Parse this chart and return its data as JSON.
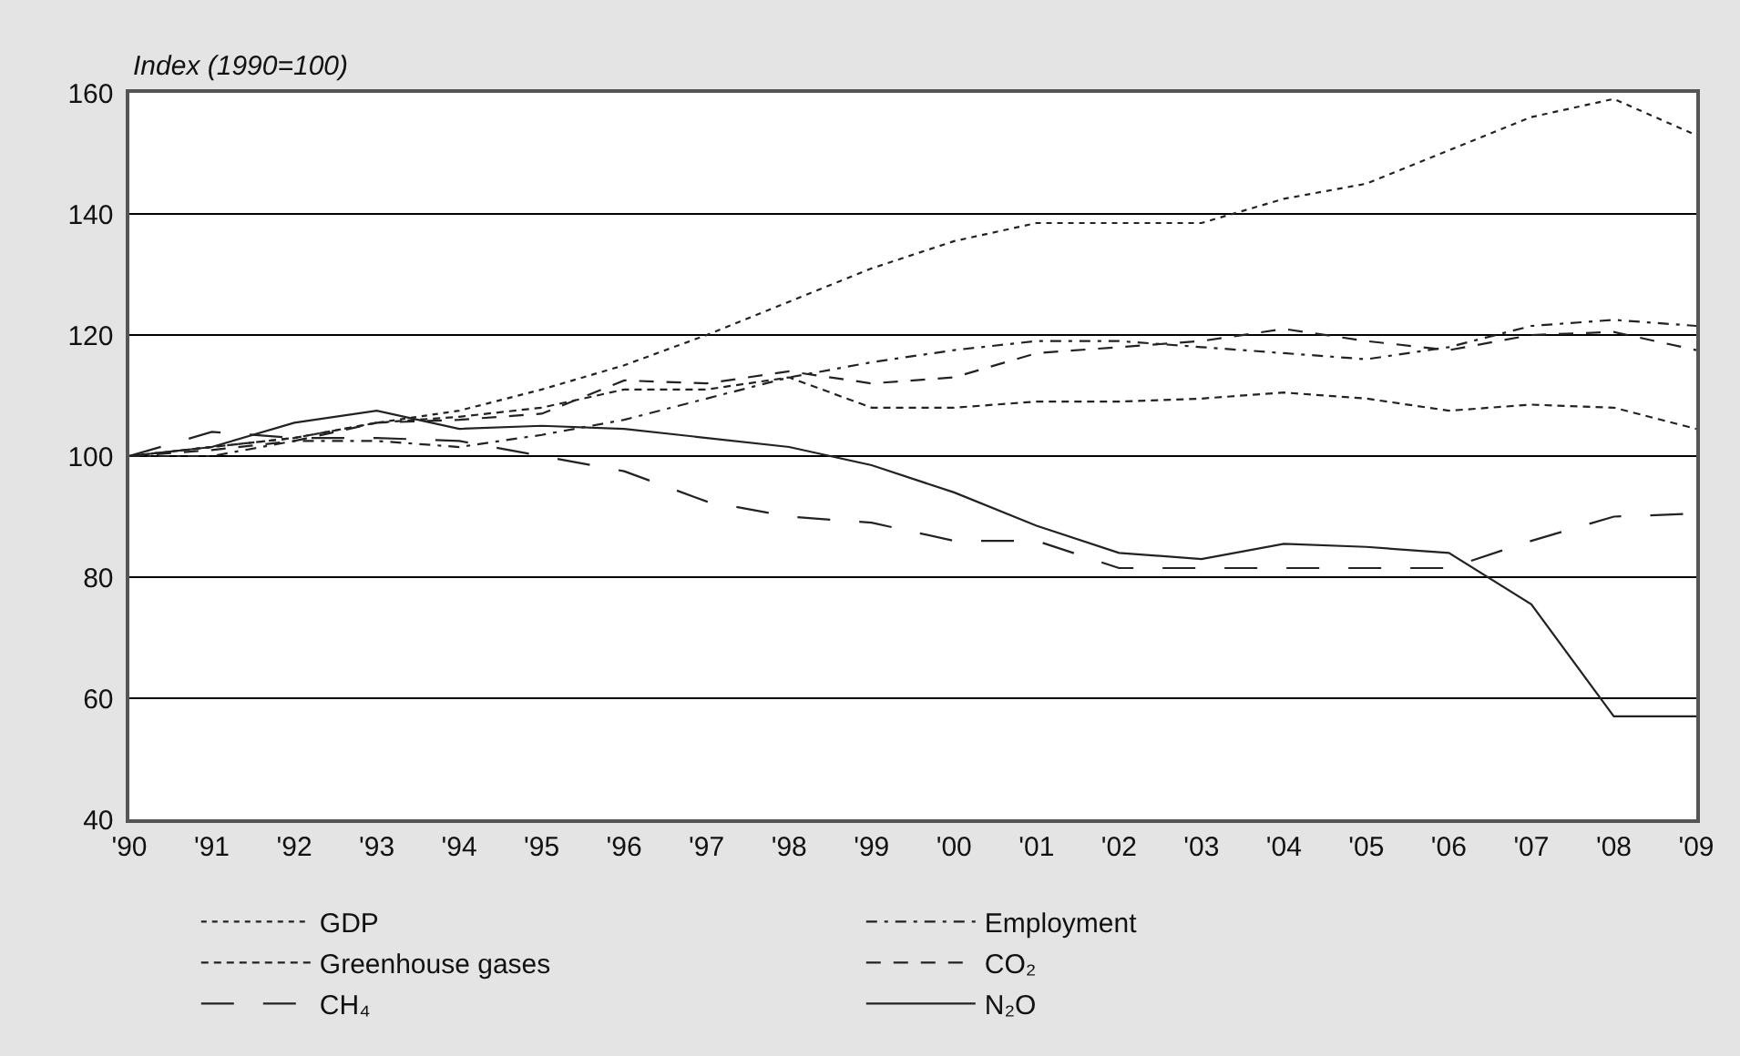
{
  "chart_data": {
    "type": "line",
    "ylabel": "Index (1990=100)",
    "x": [
      1990,
      1991,
      1992,
      1993,
      1994,
      1995,
      1996,
      1997,
      1998,
      1999,
      2000,
      2001,
      2002,
      2003,
      2004,
      2005,
      2006,
      2007,
      2008,
      2009
    ],
    "xlim": [
      1990,
      2009
    ],
    "xticks": [
      {
        "value": 1990,
        "label": "'90"
      },
      {
        "value": 1991,
        "label": "'91"
      },
      {
        "value": 1992,
        "label": "'92"
      },
      {
        "value": 1993,
        "label": "'93"
      },
      {
        "value": 1994,
        "label": "'94"
      },
      {
        "value": 1995,
        "label": "'95"
      },
      {
        "value": 1996,
        "label": "'96"
      },
      {
        "value": 1997,
        "label": "'97"
      },
      {
        "value": 1998,
        "label": "'98"
      },
      {
        "value": 1999,
        "label": "'99"
      },
      {
        "value": 2000,
        "label": "'00"
      },
      {
        "value": 2001,
        "label": "'01"
      },
      {
        "value": 2002,
        "label": "'02"
      },
      {
        "value": 2003,
        "label": "'03"
      },
      {
        "value": 2004,
        "label": "'04"
      },
      {
        "value": 2005,
        "label": "'05"
      },
      {
        "value": 2006,
        "label": "'06"
      },
      {
        "value": 2007,
        "label": "'07"
      },
      {
        "value": 2008,
        "label": "'08"
      },
      {
        "value": 2009,
        "label": "'09"
      }
    ],
    "ylim": [
      40,
      160
    ],
    "yticks": [
      40,
      60,
      80,
      100,
      120,
      140,
      160
    ],
    "grid": "y",
    "legend": "bottom",
    "marker": "none",
    "series": [
      {
        "name": "GDP",
        "color": "#222222",
        "line_style": "dotted",
        "values": [
          100,
          101.5,
          103,
          105.5,
          107.5,
          111,
          115,
          120,
          125.5,
          131,
          135.5,
          138.5,
          138.5,
          138.5,
          142.5,
          145,
          150.5,
          156,
          159,
          153
        ]
      },
      {
        "name": "Employment",
        "color": "#222222",
        "line_style": "dashdot",
        "values": [
          100,
          100,
          102.5,
          102.5,
          101.5,
          103.5,
          106,
          109.5,
          113,
          115.5,
          117.5,
          119,
          119,
          118,
          117,
          116,
          118,
          121.5,
          122.5,
          121.5
        ]
      },
      {
        "name": "Greenhouse gases",
        "color": "#222222",
        "line_style": "short dashed",
        "values": [
          100,
          101.5,
          103,
          105.5,
          106.5,
          108,
          111,
          111,
          113,
          108,
          108,
          109,
          109,
          109.5,
          110.5,
          109.5,
          107.5,
          108.5,
          108,
          104.5
        ]
      },
      {
        "name": "CO₂",
        "color": "#222222",
        "line_style": "dashed",
        "values": [
          100,
          101,
          102.5,
          105.5,
          106,
          107,
          112.5,
          112,
          114,
          112,
          113,
          117,
          118,
          119,
          121,
          119,
          117.5,
          120,
          120.5,
          117.5
        ]
      },
      {
        "name": "CH₄",
        "color": "#222222",
        "line_style": "long dashed",
        "values": [
          100,
          104,
          103,
          103,
          102.5,
          100,
          97.5,
          92.5,
          90,
          89,
          86,
          86,
          81.5,
          81.5,
          81.5,
          81.5,
          81.5,
          86,
          90,
          90.5
        ]
      },
      {
        "name": "N₂O",
        "color": "#222222",
        "line_style": "solid",
        "values": [
          100,
          101.5,
          105.5,
          107.5,
          104.5,
          105,
          104.5,
          103,
          101.5,
          98.5,
          94,
          88.5,
          84,
          83,
          85.5,
          85,
          84,
          75.5,
          57,
          57
        ]
      }
    ]
  }
}
